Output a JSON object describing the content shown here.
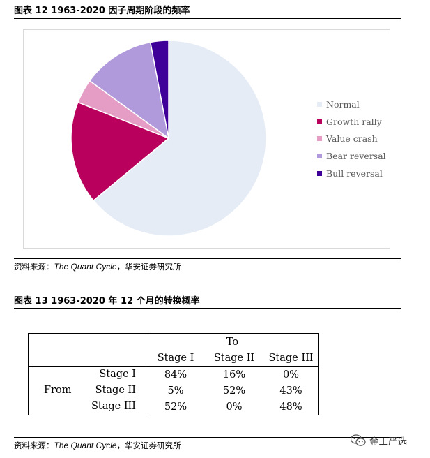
{
  "figure12": {
    "title": "图表 12 1963-2020 因子周期阶段的频率",
    "source_prefix": "资料来源：",
    "source_italic": "The Quant Cycle",
    "source_suffix": "，华安证券研究所"
  },
  "chart_data": {
    "type": "pie",
    "title": "",
    "slices": [
      {
        "label": "Normal",
        "value": 64,
        "color": "#E5ECF6"
      },
      {
        "label": "Growth rally",
        "value": 17,
        "color": "#B8005C"
      },
      {
        "label": "Value crash",
        "value": 4,
        "color": "#E59CC5"
      },
      {
        "label": "Bear reversal",
        "value": 12,
        "color": "#B09ADC"
      },
      {
        "label": "Bull reversal",
        "value": 3,
        "color": "#3F0099"
      }
    ],
    "legend_position": "right"
  },
  "figure13": {
    "title": "图表 13 1963-2020 年 12 个月的转换概率",
    "source_prefix": "资料来源：",
    "source_italic": "The Quant Cycle",
    "source_suffix": "，华安证券研究所",
    "table": {
      "to_label": "To",
      "from_label": "From",
      "columns": [
        "Stage I",
        "Stage II",
        "Stage III"
      ],
      "rows": [
        {
          "label": "Stage I",
          "values": [
            "84%",
            "16%",
            "0%"
          ]
        },
        {
          "label": "Stage II",
          "values": [
            "5%",
            "52%",
            "43%"
          ]
        },
        {
          "label": "Stage III",
          "values": [
            "52%",
            "0%",
            "48%"
          ]
        }
      ]
    }
  },
  "watermark": {
    "text": "金工严选",
    "icon": "wechat-icon"
  }
}
